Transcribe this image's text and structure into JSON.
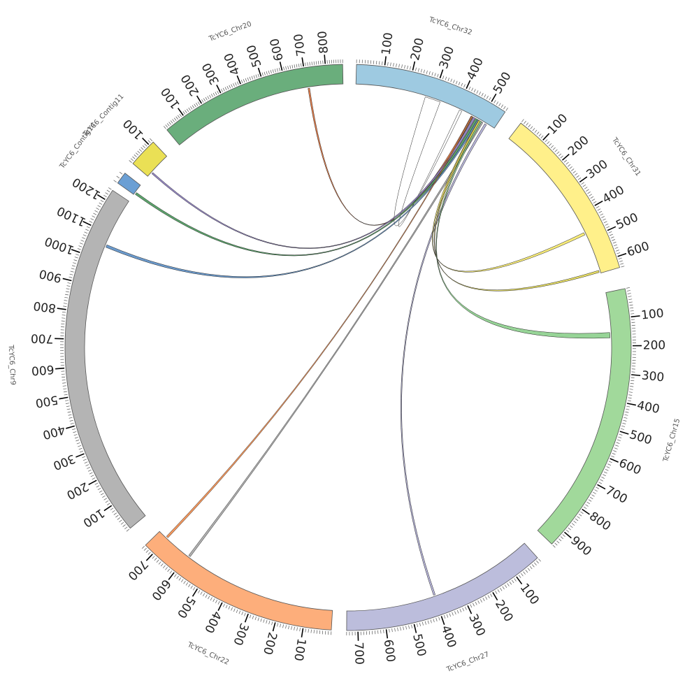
{
  "chromosomes": [
    {
      "id": "chr32",
      "label": "TcYC6_Chr32",
      "length": 560,
      "color": "#9ecae1"
    },
    {
      "id": "chr31",
      "label": "TcYC6_Chr31",
      "length": 640,
      "color": "#fff08a"
    },
    {
      "id": "chr15",
      "label": "TcYC6_Chr15",
      "length": 960,
      "color": "#a1d99b"
    },
    {
      "id": "chr27",
      "label": "TcYC6_Chr27",
      "length": 740,
      "color": "#bcbddc"
    },
    {
      "id": "chr22",
      "label": "TcYC6_Chr22",
      "length": 740,
      "color": "#fdae7b"
    },
    {
      "id": "chr9",
      "label": "TcYC6_Chr9",
      "length": 1240,
      "color": "#b4b4b4"
    },
    {
      "id": "contig14",
      "label": "TcYC6_Contig14",
      "length": 25,
      "color": "#6b9fd4"
    },
    {
      "id": "contig11",
      "label": "TcYC6_Contig11",
      "length": 120,
      "color": "#eae055"
    },
    {
      "id": "chr20",
      "label": "TcYC6_Chr20",
      "length": 880,
      "color": "#6aae7c"
    }
  ],
  "tick_interval": 100,
  "links": [
    {
      "from": "chr32",
      "from_start": 460,
      "from_end": 468,
      "to": "chr20",
      "to_start": 705,
      "to_end": 713,
      "color": "#e8743b"
    },
    {
      "from": "chr32",
      "from_start": 270,
      "from_end": 330,
      "to": "chr32",
      "to_start": 410,
      "to_end": 420,
      "color": "#ffffff"
    },
    {
      "from": "chr32",
      "from_start": 470,
      "from_end": 478,
      "to": "contig11",
      "to_start": 20,
      "to_end": 27,
      "color": "#8b7bc0"
    },
    {
      "from": "chr32",
      "from_start": 480,
      "from_end": 488,
      "to": "contig14",
      "to_start": 2,
      "to_end": 7,
      "color": "#4a9a5c"
    },
    {
      "from": "chr32",
      "from_start": 488,
      "from_end": 494,
      "to": "chr9",
      "to_start": 1050,
      "to_end": 1060,
      "color": "#5b8fc7"
    },
    {
      "from": "chr32",
      "from_start": 462,
      "from_end": 466,
      "to": "chr22",
      "to_start": 700,
      "to_end": 708,
      "color": "#f28c4b"
    },
    {
      "from": "chr32",
      "from_start": 505,
      "from_end": 512,
      "to": "chr22",
      "to_start": 588,
      "to_end": 596,
      "color": "#a8a8a8"
    },
    {
      "from": "chr32",
      "from_start": 520,
      "from_end": 528,
      "to": "chr27",
      "to_start": 395,
      "to_end": 402,
      "color": "#b0aed6"
    },
    {
      "from": "chr32",
      "from_start": 492,
      "from_end": 500,
      "to": "chr31",
      "to_start": 470,
      "to_end": 480,
      "color": "#f7ea6a"
    },
    {
      "from": "chr32",
      "from_start": 494,
      "from_end": 500,
      "to": "chr31",
      "to_start": 628,
      "to_end": 636,
      "color": "#e6dc55"
    },
    {
      "from": "chr32",
      "from_start": 500,
      "from_end": 506,
      "to": "chr15",
      "to_start": 150,
      "to_end": 170,
      "color": "#8ccf8c"
    }
  ]
}
